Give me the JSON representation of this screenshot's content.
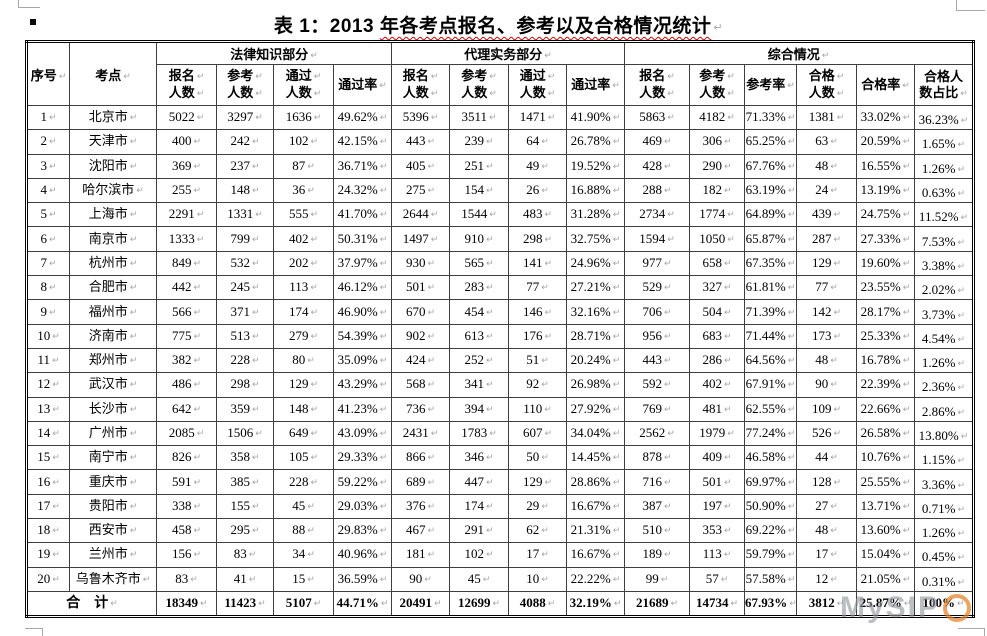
{
  "document": {
    "title": {
      "text_plain": "表 1：2013 ",
      "text_underlined": "年各考点报名、参考以及合格情况统计"
    }
  },
  "table": {
    "corner_headers": [
      "序号",
      "考点"
    ],
    "group_headers": [
      "法律知识部分",
      "代理实务部分",
      "综合情况"
    ],
    "sub_headers": [
      [
        "报名",
        "人数"
      ],
      [
        "参考",
        "人数"
      ],
      [
        "通过",
        "人数"
      ],
      [
        "通过率"
      ],
      [
        "报名",
        "人数"
      ],
      [
        "参考",
        "人数"
      ],
      [
        "通过",
        "人数"
      ],
      [
        "通过率"
      ],
      [
        "报名",
        "人数"
      ],
      [
        "参考",
        "人数"
      ],
      [
        "参考率"
      ],
      [
        "合格",
        "人数"
      ],
      [
        "合格率"
      ],
      [
        "合格人",
        "数占比"
      ]
    ],
    "rows": [
      {
        "no": "1",
        "city": "北京市",
        "values": [
          "5022",
          "3297",
          "1636",
          "49.62%",
          "5396",
          "3511",
          "1471",
          "41.90%",
          "5863",
          "4182",
          "71.33%",
          "1381",
          "33.02%",
          "36.23%"
        ]
      },
      {
        "no": "2",
        "city": "天津市",
        "values": [
          "400",
          "242",
          "102",
          "42.15%",
          "443",
          "239",
          "64",
          "26.78%",
          "469",
          "306",
          "65.25%",
          "63",
          "20.59%",
          "1.65%"
        ]
      },
      {
        "no": "3",
        "city": "沈阳市",
        "values": [
          "369",
          "237",
          "87",
          "36.71%",
          "405",
          "251",
          "49",
          "19.52%",
          "428",
          "290",
          "67.76%",
          "48",
          "16.55%",
          "1.26%"
        ]
      },
      {
        "no": "4",
        "city": "哈尔滨市",
        "values": [
          "255",
          "148",
          "36",
          "24.32%",
          "275",
          "154",
          "26",
          "16.88%",
          "288",
          "182",
          "63.19%",
          "24",
          "13.19%",
          "0.63%"
        ]
      },
      {
        "no": "5",
        "city": "上海市",
        "values": [
          "2291",
          "1331",
          "555",
          "41.70%",
          "2644",
          "1544",
          "483",
          "31.28%",
          "2734",
          "1774",
          "64.89%",
          "439",
          "24.75%",
          "11.52%"
        ]
      },
      {
        "no": "6",
        "city": "南京市",
        "values": [
          "1333",
          "799",
          "402",
          "50.31%",
          "1497",
          "910",
          "298",
          "32.75%",
          "1594",
          "1050",
          "65.87%",
          "287",
          "27.33%",
          "7.53%"
        ]
      },
      {
        "no": "7",
        "city": "杭州市",
        "values": [
          "849",
          "532",
          "202",
          "37.97%",
          "930",
          "565",
          "141",
          "24.96%",
          "977",
          "658",
          "67.35%",
          "129",
          "19.60%",
          "3.38%"
        ]
      },
      {
        "no": "8",
        "city": "合肥市",
        "values": [
          "442",
          "245",
          "113",
          "46.12%",
          "501",
          "283",
          "77",
          "27.21%",
          "529",
          "327",
          "61.81%",
          "77",
          "23.55%",
          "2.02%"
        ]
      },
      {
        "no": "9",
        "city": "福州市",
        "values": [
          "566",
          "371",
          "174",
          "46.90%",
          "670",
          "454",
          "146",
          "32.16%",
          "706",
          "504",
          "71.39%",
          "142",
          "28.17%",
          "3.73%"
        ]
      },
      {
        "no": "10",
        "city": "济南市",
        "values": [
          "775",
          "513",
          "279",
          "54.39%",
          "902",
          "613",
          "176",
          "28.71%",
          "956",
          "683",
          "71.44%",
          "173",
          "25.33%",
          "4.54%"
        ]
      },
      {
        "no": "11",
        "city": "郑州市",
        "values": [
          "382",
          "228",
          "80",
          "35.09%",
          "424",
          "252",
          "51",
          "20.24%",
          "443",
          "286",
          "64.56%",
          "48",
          "16.78%",
          "1.26%"
        ]
      },
      {
        "no": "12",
        "city": "武汉市",
        "values": [
          "486",
          "298",
          "129",
          "43.29%",
          "568",
          "341",
          "92",
          "26.98%",
          "592",
          "402",
          "67.91%",
          "90",
          "22.39%",
          "2.36%"
        ]
      },
      {
        "no": "13",
        "city": "长沙市",
        "values": [
          "642",
          "359",
          "148",
          "41.23%",
          "736",
          "394",
          "110",
          "27.92%",
          "769",
          "481",
          "62.55%",
          "109",
          "22.66%",
          "2.86%"
        ]
      },
      {
        "no": "14",
        "city": "广州市",
        "values": [
          "2085",
          "1506",
          "649",
          "43.09%",
          "2431",
          "1783",
          "607",
          "34.04%",
          "2562",
          "1979",
          "77.24%",
          "526",
          "26.58%",
          "13.80%"
        ]
      },
      {
        "no": "15",
        "city": "南宁市",
        "values": [
          "826",
          "358",
          "105",
          "29.33%",
          "866",
          "346",
          "50",
          "14.45%",
          "878",
          "409",
          "46.58%",
          "44",
          "10.76%",
          "1.15%"
        ]
      },
      {
        "no": "16",
        "city": "重庆市",
        "values": [
          "591",
          "385",
          "228",
          "59.22%",
          "689",
          "447",
          "129",
          "28.86%",
          "716",
          "501",
          "69.97%",
          "128",
          "25.55%",
          "3.36%"
        ]
      },
      {
        "no": "17",
        "city": "贵阳市",
        "values": [
          "338",
          "155",
          "45",
          "29.03%",
          "376",
          "174",
          "29",
          "16.67%",
          "387",
          "197",
          "50.90%",
          "27",
          "13.71%",
          "0.71%"
        ]
      },
      {
        "no": "18",
        "city": "西安市",
        "values": [
          "458",
          "295",
          "88",
          "29.83%",
          "467",
          "291",
          "62",
          "21.31%",
          "510",
          "353",
          "69.22%",
          "48",
          "13.60%",
          "1.26%"
        ]
      },
      {
        "no": "19",
        "city": "兰州市",
        "values": [
          "156",
          "83",
          "34",
          "40.96%",
          "181",
          "102",
          "17",
          "16.67%",
          "189",
          "113",
          "59.79%",
          "17",
          "15.04%",
          "0.45%"
        ]
      },
      {
        "no": "20",
        "city": "乌鲁木齐市",
        "values": [
          "83",
          "41",
          "15",
          "36.59%",
          "90",
          "45",
          "10",
          "22.22%",
          "99",
          "57",
          "57.58%",
          "12",
          "21.05%",
          "0.31%"
        ]
      }
    ],
    "total": {
      "label": "合　计",
      "values": [
        "18349",
        "11423",
        "5107",
        "44.71%",
        "20491",
        "12699",
        "4088",
        "32.19%",
        "21689",
        "14734",
        "67.93%",
        "3812",
        "25.87%",
        "100%"
      ]
    }
  },
  "watermark": {
    "text": "MySIP",
    "ring_letter": "O"
  },
  "colors": {
    "squiggle_red": "#e00000",
    "watermark_gray": "#9196a0",
    "watermark_ring_orange": "#e68026",
    "grid_line": "#3f3f3f"
  }
}
